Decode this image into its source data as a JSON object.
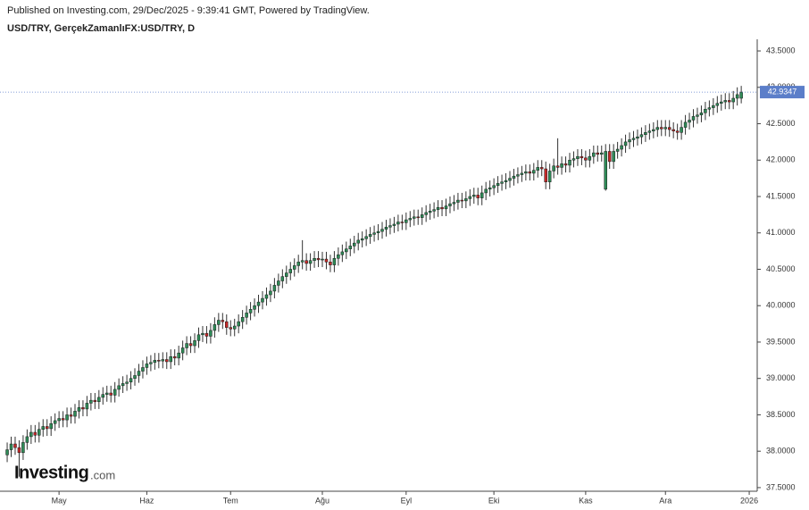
{
  "source": "Published on Investing.com, 29/Dec/2025 - 9:39:41 GMT, Powered by TradingView.",
  "logo": {
    "brand": "Investing",
    "suffix": ".com"
  },
  "chart_data": {
    "type": "candlestick",
    "title": "USD/TRY, GerçekZamanlıFX:USD/TRY, D",
    "up_color": "#2e8b57",
    "down_color": "#c62828",
    "wick_color": "#333333",
    "last_price_color": "#5b7ec9",
    "open": [
      37.95,
      38.02,
      38.1,
      38.05,
      37.98,
      38.12,
      38.2,
      38.26,
      38.22,
      38.3,
      38.34,
      38.31,
      38.38,
      38.42,
      38.45,
      38.43,
      38.5,
      38.48,
      38.55,
      38.6,
      38.58,
      38.66,
      38.7,
      38.68,
      38.74,
      38.78,
      38.8,
      38.77,
      38.85,
      38.9,
      38.93,
      38.95,
      39.0,
      39.04,
      39.1,
      39.15,
      39.2,
      39.22,
      39.25,
      39.24,
      39.26,
      39.23,
      39.3,
      39.28,
      39.35,
      39.42,
      39.48,
      39.45,
      39.52,
      39.6,
      39.62,
      39.58,
      39.66,
      39.74,
      39.8,
      39.78,
      39.7,
      39.68,
      39.72,
      39.78,
      39.84,
      39.9,
      39.95,
      40.0,
      40.05,
      40.1,
      40.15,
      40.2,
      40.28,
      40.34,
      40.4,
      40.45,
      40.5,
      40.55,
      40.6,
      40.62,
      40.58,
      40.62,
      40.65,
      40.63,
      40.64,
      40.6,
      40.56,
      40.65,
      40.7,
      40.74,
      40.78,
      40.82,
      40.86,
      40.9,
      40.92,
      40.95,
      40.98,
      41.0,
      41.02,
      41.05,
      41.08,
      41.1,
      41.12,
      41.15,
      41.14,
      41.18,
      41.2,
      41.22,
      41.21,
      41.25,
      41.28,
      41.3,
      41.32,
      41.35,
      41.33,
      41.37,
      41.4,
      41.42,
      41.45,
      41.44,
      41.47,
      41.5,
      41.52,
      41.48,
      41.55,
      41.6,
      41.62,
      41.65,
      41.68,
      41.7,
      41.72,
      41.75,
      41.78,
      41.8,
      41.82,
      41.84,
      41.82,
      41.86,
      41.9,
      41.88,
      41.7,
      41.85,
      41.92,
      41.9,
      41.95,
      41.93,
      42.0,
      42.02,
      42.05,
      42.03,
      42.0,
      42.05,
      42.1,
      42.08,
      41.6,
      42.12,
      41.98,
      42.12,
      42.15,
      42.2,
      42.25,
      42.28,
      42.3,
      42.32,
      42.35,
      42.38,
      42.4,
      42.42,
      42.45,
      42.43,
      42.45,
      42.42,
      42.4,
      42.38,
      42.45,
      42.52,
      42.55,
      42.6,
      42.62,
      42.65,
      42.7,
      42.72,
      42.75,
      42.78,
      42.8,
      42.82,
      42.8,
      42.85,
      42.85
    ],
    "high": [
      38.12,
      38.2,
      38.2,
      38.15,
      38.22,
      38.3,
      38.36,
      38.36,
      38.4,
      38.44,
      38.44,
      38.48,
      38.52,
      38.55,
      38.55,
      38.6,
      38.6,
      38.65,
      38.7,
      38.7,
      38.76,
      38.8,
      38.8,
      38.84,
      38.88,
      38.9,
      38.9,
      38.95,
      39.0,
      39.03,
      39.05,
      39.1,
      39.14,
      39.2,
      39.25,
      39.3,
      39.32,
      39.35,
      39.35,
      39.36,
      39.36,
      39.4,
      39.4,
      39.45,
      39.52,
      39.58,
      39.58,
      39.62,
      39.7,
      39.72,
      39.72,
      39.76,
      39.84,
      39.9,
      39.9,
      39.88,
      39.8,
      39.82,
      39.88,
      39.94,
      40.0,
      40.05,
      40.1,
      40.15,
      40.2,
      40.25,
      40.3,
      40.38,
      40.44,
      40.5,
      40.55,
      40.6,
      40.65,
      40.7,
      40.9,
      40.72,
      40.72,
      40.75,
      40.75,
      40.74,
      40.74,
      40.7,
      40.75,
      40.8,
      40.84,
      40.88,
      40.92,
      40.96,
      41.0,
      41.02,
      41.05,
      41.08,
      41.1,
      41.12,
      41.15,
      41.18,
      41.2,
      41.22,
      41.25,
      41.25,
      41.28,
      41.3,
      41.32,
      41.32,
      41.35,
      41.38,
      41.4,
      41.42,
      41.45,
      41.45,
      41.47,
      41.5,
      41.52,
      41.55,
      41.55,
      41.57,
      41.6,
      41.62,
      41.62,
      41.65,
      41.7,
      41.72,
      41.75,
      41.78,
      41.8,
      41.82,
      41.85,
      41.88,
      41.9,
      41.92,
      41.94,
      41.94,
      41.96,
      42.0,
      42.0,
      41.98,
      41.95,
      42.02,
      42.3,
      42.05,
      42.05,
      42.1,
      42.12,
      42.15,
      42.15,
      42.13,
      42.15,
      42.2,
      42.2,
      42.2,
      42.22,
      42.22,
      42.22,
      42.25,
      42.3,
      42.35,
      42.38,
      42.4,
      42.42,
      42.45,
      42.48,
      42.5,
      42.52,
      42.55,
      42.55,
      42.55,
      42.55,
      42.52,
      42.5,
      42.55,
      42.62,
      42.65,
      42.7,
      42.72,
      42.75,
      42.8,
      42.82,
      42.85,
      42.88,
      42.9,
      42.92,
      42.92,
      42.95,
      43.0,
      43.02
    ],
    "low": [
      37.85,
      37.92,
      37.95,
      37.65,
      37.88,
      38.02,
      38.1,
      38.12,
      38.12,
      38.2,
      38.21,
      38.21,
      38.28,
      38.32,
      38.33,
      38.33,
      38.38,
      38.38,
      38.45,
      38.48,
      38.48,
      38.56,
      38.58,
      38.58,
      38.64,
      38.68,
      38.67,
      38.67,
      38.75,
      38.8,
      38.83,
      38.85,
      38.9,
      38.94,
      39.0,
      39.05,
      39.1,
      39.12,
      39.14,
      39.14,
      39.13,
      39.13,
      39.18,
      39.18,
      39.25,
      39.32,
      39.35,
      39.35,
      39.42,
      39.5,
      39.48,
      39.48,
      39.56,
      39.64,
      39.68,
      39.6,
      39.58,
      39.58,
      39.62,
      39.68,
      39.74,
      39.8,
      39.85,
      39.9,
      39.95,
      40.0,
      40.05,
      40.1,
      40.18,
      40.24,
      40.3,
      40.35,
      40.4,
      40.45,
      40.5,
      40.48,
      40.48,
      40.52,
      40.53,
      40.53,
      40.5,
      40.46,
      40.46,
      40.55,
      40.6,
      40.64,
      40.68,
      40.72,
      40.76,
      40.8,
      40.82,
      40.85,
      40.88,
      40.9,
      40.92,
      40.95,
      40.98,
      41.0,
      41.02,
      41.04,
      41.04,
      41.08,
      41.1,
      41.11,
      41.11,
      41.15,
      41.18,
      41.2,
      41.22,
      41.23,
      41.23,
      41.27,
      41.3,
      41.32,
      41.34,
      41.34,
      41.37,
      41.4,
      41.38,
      41.38,
      41.45,
      41.5,
      41.52,
      41.55,
      41.58,
      41.6,
      41.62,
      41.65,
      41.68,
      41.7,
      41.72,
      41.72,
      41.72,
      41.76,
      41.78,
      41.6,
      41.6,
      41.75,
      41.8,
      41.8,
      41.83,
      41.83,
      41.9,
      41.92,
      41.93,
      41.9,
      41.9,
      41.95,
      41.98,
      41.98,
      41.58,
      41.88,
      41.88,
      42.02,
      42.05,
      42.1,
      42.15,
      42.18,
      42.2,
      42.22,
      42.25,
      42.28,
      42.3,
      42.32,
      42.33,
      42.33,
      42.32,
      42.3,
      42.28,
      42.28,
      42.35,
      42.42,
      42.45,
      42.5,
      42.52,
      42.55,
      42.6,
      42.62,
      42.65,
      42.68,
      42.7,
      42.7,
      42.7,
      42.75,
      42.78
    ],
    "close": [
      38.02,
      38.1,
      38.05,
      37.98,
      38.12,
      38.2,
      38.26,
      38.22,
      38.3,
      38.34,
      38.31,
      38.38,
      38.42,
      38.45,
      38.43,
      38.5,
      38.48,
      38.55,
      38.6,
      38.58,
      38.66,
      38.7,
      38.68,
      38.74,
      38.78,
      38.8,
      38.77,
      38.85,
      38.9,
      38.93,
      38.95,
      39.0,
      39.04,
      39.1,
      39.15,
      39.2,
      39.22,
      39.25,
      39.24,
      39.26,
      39.23,
      39.3,
      39.28,
      39.35,
      39.42,
      39.48,
      39.45,
      39.52,
      39.6,
      39.62,
      39.58,
      39.66,
      39.74,
      39.8,
      39.78,
      39.7,
      39.68,
      39.72,
      39.78,
      39.84,
      39.9,
      39.95,
      40.0,
      40.05,
      40.1,
      40.15,
      40.2,
      40.28,
      40.34,
      40.4,
      40.45,
      40.5,
      40.55,
      40.6,
      40.62,
      40.58,
      40.62,
      40.65,
      40.63,
      40.64,
      40.6,
      40.56,
      40.65,
      40.7,
      40.74,
      40.78,
      40.82,
      40.86,
      40.9,
      40.92,
      40.95,
      40.98,
      41.0,
      41.02,
      41.05,
      41.08,
      41.1,
      41.12,
      41.15,
      41.14,
      41.18,
      41.2,
      41.22,
      41.21,
      41.25,
      41.28,
      41.3,
      41.32,
      41.35,
      41.33,
      41.37,
      41.4,
      41.42,
      41.45,
      41.44,
      41.47,
      41.5,
      41.52,
      41.48,
      41.55,
      41.6,
      41.62,
      41.65,
      41.68,
      41.7,
      41.72,
      41.75,
      41.78,
      41.8,
      41.82,
      41.84,
      41.82,
      41.86,
      41.9,
      41.88,
      41.7,
      41.85,
      41.92,
      41.9,
      41.95,
      41.93,
      42.0,
      42.02,
      42.05,
      42.03,
      42.0,
      42.05,
      42.1,
      42.08,
      42.1,
      42.12,
      41.98,
      42.12,
      42.15,
      42.2,
      42.25,
      42.28,
      42.3,
      42.32,
      42.35,
      42.38,
      42.4,
      42.42,
      42.45,
      42.43,
      42.45,
      42.42,
      42.4,
      42.38,
      42.45,
      42.52,
      42.55,
      42.6,
      42.62,
      42.65,
      42.7,
      42.72,
      42.75,
      42.78,
      42.8,
      42.82,
      42.8,
      42.85,
      42.9,
      42.9347
    ],
    "xlim": [
      -1.8,
      188
    ],
    "xticks": [
      {
        "value": 13,
        "label": "May"
      },
      {
        "value": 35,
        "label": "Haz"
      },
      {
        "value": 56,
        "label": "Tem"
      },
      {
        "value": 79,
        "label": "Ağu"
      },
      {
        "value": 100,
        "label": "Eyl"
      },
      {
        "value": 122,
        "label": "Eki"
      },
      {
        "value": 145,
        "label": "Kas"
      },
      {
        "value": 165,
        "label": "Ara"
      },
      {
        "value": 186,
        "label": "2026"
      }
    ],
    "ylim": [
      37.45,
      43.66
    ],
    "yticks": [
      {
        "value": 37.5,
        "label": "37.5000"
      },
      {
        "value": 38,
        "label": "38.0000"
      },
      {
        "value": 38.5,
        "label": "38.5000"
      },
      {
        "value": 39,
        "label": "39.0000"
      },
      {
        "value": 39.5,
        "label": "39.5000"
      },
      {
        "value": 40,
        "label": "40.0000"
      },
      {
        "value": 40.5,
        "label": "40.5000"
      },
      {
        "value": 41,
        "label": "41.0000"
      },
      {
        "value": 41.5,
        "label": "41.5000"
      },
      {
        "value": 42,
        "label": "42.0000"
      },
      {
        "value": 42.5,
        "label": "42.5000"
      },
      {
        "value": 43,
        "label": "43.0000"
      },
      {
        "value": 43.5,
        "label": "43.5000"
      }
    ]
  }
}
